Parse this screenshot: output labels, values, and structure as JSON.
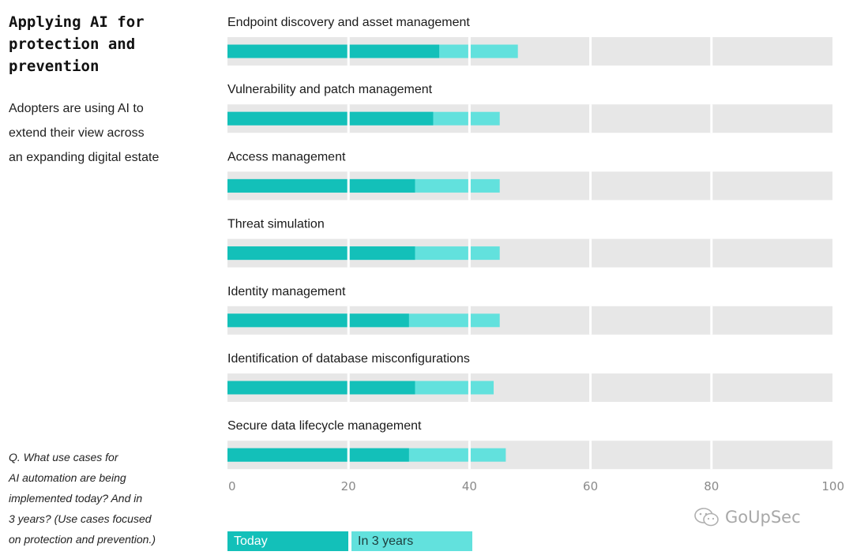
{
  "left_panel": {
    "title": "Applying AI for\nprotection and\nprevention",
    "subtitle": "Adopters are using AI to\nextend their view across\nan expanding digital estate",
    "question": "Q. What use cases for\nAI automation are being\nimplemented today? And in\n3 years? (Use cases focused\non protection and prevention.)"
  },
  "legend": {
    "today": "Today",
    "future": "In 3 years"
  },
  "watermark": {
    "text": "GoUpSec",
    "icon": "wechat-icon"
  },
  "colors": {
    "today": "#13c0b9",
    "future": "#62e1dd",
    "track": "#e7e7e7",
    "gridline": "#ffffff"
  },
  "chart_data": {
    "type": "bar",
    "orientation": "horizontal",
    "stacked": "overlay",
    "categories": [
      "Endpoint discovery and asset management",
      "Vulnerability and patch management",
      "Access management",
      "Threat simulation",
      "Identity management",
      "Identification of database misconfigurations",
      "Secure data lifecycle management"
    ],
    "series": [
      {
        "name": "Today",
        "values": [
          35,
          34,
          31,
          31,
          30,
          31,
          30
        ]
      },
      {
        "name": "In 3 years",
        "values": [
          48,
          45,
          45,
          45,
          45,
          44,
          46
        ]
      }
    ],
    "xlim": [
      0,
      100
    ],
    "xticks": [
      0,
      20,
      40,
      60,
      80,
      100
    ],
    "grid": true,
    "legend_position": "bottom-left"
  }
}
